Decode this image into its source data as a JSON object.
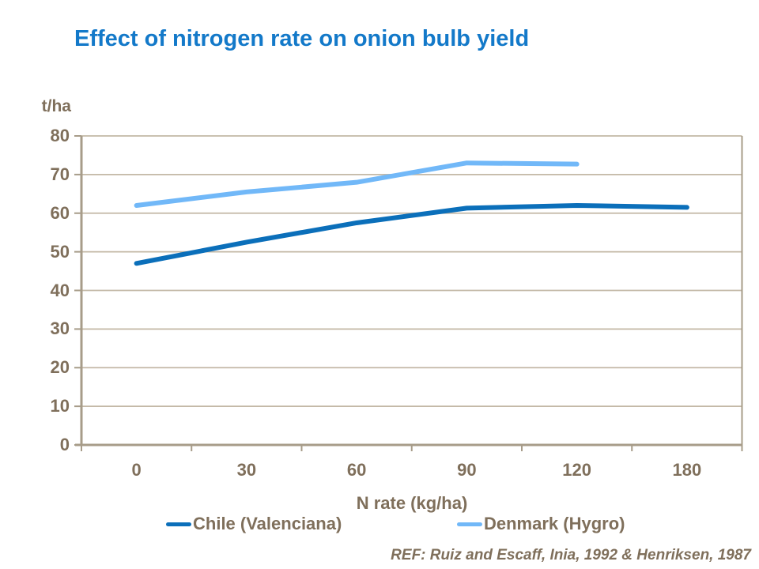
{
  "colors": {
    "title": "#1379C9",
    "axis_text": "#7F6F5B",
    "gridline": "#C3B8A6",
    "axis_line": "#A79C89",
    "series_chile": "#0B6FBA",
    "series_denmark": "#71B8F8"
  },
  "chart_data": {
    "type": "line",
    "title": "Effect of nitrogen rate on onion bulb yield",
    "ylabel": "t/ha",
    "xlabel": "N rate (kg/ha)",
    "categories": [
      "0",
      "30",
      "60",
      "90",
      "120",
      "180"
    ],
    "yticks": [
      0,
      10,
      20,
      30,
      40,
      50,
      60,
      70,
      80
    ],
    "ylim": [
      0,
      80
    ],
    "grid": true,
    "legend_position": "bottom",
    "series": [
      {
        "name": "Chile (Valenciana)",
        "color": "#0B6FBA",
        "values": [
          47,
          52.5,
          57.5,
          61.3,
          62,
          61.5
        ]
      },
      {
        "name": "Denmark (Hygro)",
        "color": "#71B8F8",
        "values": [
          62,
          65.5,
          68,
          73,
          72.7,
          null
        ]
      }
    ],
    "source_ref": "REF: Ruiz and Escaff, Inia, 1992 & Henriksen, 1987"
  }
}
